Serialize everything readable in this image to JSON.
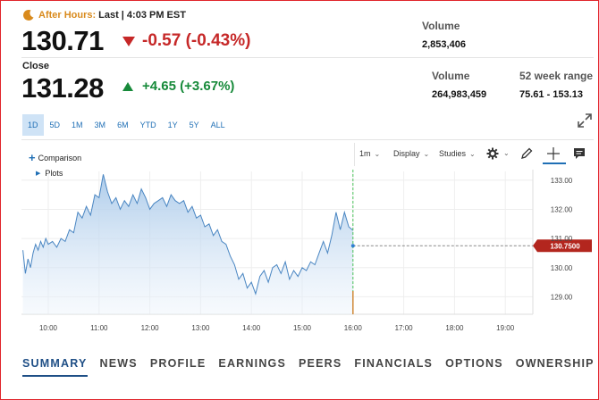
{
  "after_hours": {
    "label": "After Hours:",
    "last": "Last",
    "time": "| 4:03 PM EST",
    "price": "130.71",
    "change": "-0.57 (-0.43%)",
    "volume_label": "Volume",
    "volume_value": "2,853,406"
  },
  "close": {
    "label": "Close",
    "price": "131.28",
    "change": "+4.65 (+3.67%)",
    "volume_label": "Volume",
    "volume_value": "264,983,459",
    "range_label": "52 week range",
    "range_value": "75.61 - 153.13"
  },
  "ranges": [
    "1D",
    "5D",
    "1M",
    "3M",
    "6M",
    "YTD",
    "1Y",
    "5Y",
    "ALL"
  ],
  "active_range": "1D",
  "toolbar": {
    "comparison": "Comparison",
    "plots": "Plots",
    "interval": "1m",
    "display": "Display",
    "studies": "Studies"
  },
  "chart_data": {
    "type": "area",
    "x_ticks": [
      "10:00",
      "11:00",
      "12:00",
      "13:00",
      "14:00",
      "15:00",
      "16:00",
      "17:00",
      "18:00",
      "19:00"
    ],
    "y_ticks": [
      "133.00",
      "132.00",
      "131.00",
      "130.00",
      "129.00"
    ],
    "ylim": [
      128.4,
      133.3
    ],
    "current_price_label": "130.7500",
    "current_price": 130.75,
    "series_points": [
      [
        "09:30",
        130.6
      ],
      [
        "09:33",
        129.8
      ],
      [
        "09:36",
        130.3
      ],
      [
        "09:39",
        130.0
      ],
      [
        "09:42",
        130.5
      ],
      [
        "09:45",
        130.8
      ],
      [
        "09:48",
        130.6
      ],
      [
        "09:51",
        130.9
      ],
      [
        "09:54",
        130.7
      ],
      [
        "09:57",
        131.0
      ],
      [
        "10:00",
        130.8
      ],
      [
        "10:05",
        130.9
      ],
      [
        "10:10",
        130.7
      ],
      [
        "10:15",
        131.0
      ],
      [
        "10:20",
        130.9
      ],
      [
        "10:25",
        131.3
      ],
      [
        "10:30",
        131.2
      ],
      [
        "10:35",
        131.9
      ],
      [
        "10:40",
        131.7
      ],
      [
        "10:45",
        132.1
      ],
      [
        "10:50",
        131.8
      ],
      [
        "10:55",
        132.5
      ],
      [
        "11:00",
        132.4
      ],
      [
        "11:05",
        133.2
      ],
      [
        "11:10",
        132.6
      ],
      [
        "11:15",
        132.2
      ],
      [
        "11:20",
        132.4
      ],
      [
        "11:25",
        132.0
      ],
      [
        "11:30",
        132.3
      ],
      [
        "11:35",
        132.1
      ],
      [
        "11:40",
        132.5
      ],
      [
        "11:45",
        132.2
      ],
      [
        "11:50",
        132.7
      ],
      [
        "11:55",
        132.4
      ],
      [
        "12:00",
        132.0
      ],
      [
        "12:05",
        132.2
      ],
      [
        "12:10",
        132.3
      ],
      [
        "12:15",
        132.4
      ],
      [
        "12:20",
        132.1
      ],
      [
        "12:25",
        132.5
      ],
      [
        "12:30",
        132.3
      ],
      [
        "12:35",
        132.2
      ],
      [
        "12:40",
        132.3
      ],
      [
        "12:45",
        131.9
      ],
      [
        "12:50",
        132.1
      ],
      [
        "12:55",
        131.7
      ],
      [
        "13:00",
        131.8
      ],
      [
        "13:05",
        131.4
      ],
      [
        "13:10",
        131.5
      ],
      [
        "13:15",
        131.1
      ],
      [
        "13:20",
        131.3
      ],
      [
        "13:25",
        130.9
      ],
      [
        "13:30",
        130.8
      ],
      [
        "13:35",
        130.4
      ],
      [
        "13:40",
        130.1
      ],
      [
        "13:45",
        129.6
      ],
      [
        "13:50",
        129.8
      ],
      [
        "13:55",
        129.3
      ],
      [
        "14:00",
        129.5
      ],
      [
        "14:05",
        129.1
      ],
      [
        "14:10",
        129.7
      ],
      [
        "14:15",
        129.9
      ],
      [
        "14:20",
        129.5
      ],
      [
        "14:25",
        130.0
      ],
      [
        "14:30",
        130.1
      ],
      [
        "14:35",
        129.8
      ],
      [
        "14:40",
        130.2
      ],
      [
        "14:45",
        129.6
      ],
      [
        "14:50",
        129.9
      ],
      [
        "14:55",
        129.7
      ],
      [
        "15:00",
        130.0
      ],
      [
        "15:05",
        129.9
      ],
      [
        "15:10",
        130.2
      ],
      [
        "15:15",
        130.1
      ],
      [
        "15:20",
        130.5
      ],
      [
        "15:25",
        130.9
      ],
      [
        "15:30",
        130.5
      ],
      [
        "15:35",
        131.1
      ],
      [
        "15:40",
        131.9
      ],
      [
        "15:45",
        131.3
      ],
      [
        "15:50",
        131.9
      ],
      [
        "15:55",
        131.4
      ],
      [
        "16:00",
        131.28
      ]
    ]
  },
  "nav": [
    "SUMMARY",
    "NEWS",
    "PROFILE",
    "EARNINGS",
    "PEERS",
    "FINANCIALS",
    "OPTIONS",
    "OWNERSHIP"
  ],
  "active_nav": "SUMMARY",
  "colors": {
    "negative": "#c62828",
    "positive": "#178a3a",
    "accent": "#1f6fb5",
    "after_hours": "#d98a1c",
    "price_tag": "#b3261e"
  }
}
